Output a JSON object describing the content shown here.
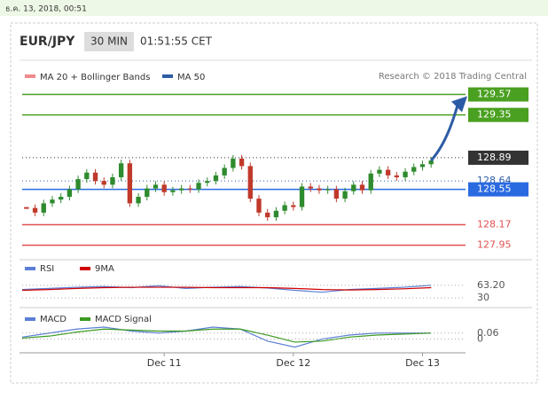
{
  "date": "ธ.ค. 13, 2018, 00:51",
  "header": {
    "symbol": "EUR/JPY",
    "interval": "30 MIN",
    "time": "01:51:55 CET"
  },
  "chart_data": [
    {
      "type": "candlestick",
      "legend": [
        {
          "name": "MA 20 + Bollinger Bands",
          "color": "#f08a8a"
        },
        {
          "name": "MA 50",
          "color": "#2d5ca6"
        }
      ],
      "credit": "Research © 2018 Trading Central",
      "values": [
        128.35,
        128.3,
        128.4,
        128.44,
        128.47,
        128.55,
        128.66,
        128.73,
        128.64,
        128.6,
        128.68,
        128.83,
        128.4,
        128.47,
        128.56,
        128.6,
        128.52,
        128.54,
        128.56,
        128.55,
        128.62,
        128.64,
        128.7,
        128.78,
        128.88,
        128.8,
        128.45,
        128.3,
        128.25,
        128.32,
        128.38,
        128.36,
        128.58,
        128.56,
        128.54,
        128.55,
        128.45,
        128.53,
        128.6,
        128.54,
        128.72,
        128.76,
        128.7,
        128.68,
        128.74,
        128.79,
        128.82,
        128.86
      ],
      "up_color": "#2e8b2e",
      "down_color": "#c0392b",
      "ylim": [
        127.87,
        129.68
      ],
      "xlim": [
        -0.5,
        51
      ],
      "xticks": [
        {
          "value": 16,
          "label": "Dec 11"
        },
        {
          "value": 31,
          "label": "Dec 12"
        },
        {
          "value": 46,
          "label": "Dec 13"
        }
      ],
      "levels": [
        {
          "value": 129.57,
          "color": "#4aa020",
          "style": "solid",
          "box": true
        },
        {
          "value": 129.35,
          "color": "#4aa020",
          "style": "solid",
          "box": true
        },
        {
          "value": 128.89,
          "color": "#333333",
          "style": "dotted",
          "box": true
        },
        {
          "value": 128.64,
          "color": "#2d5ca6",
          "style": "dotted",
          "box": false
        },
        {
          "value": 128.55,
          "color": "#2a6ae0",
          "style": "solid",
          "box": true
        },
        {
          "value": 128.17,
          "color": "#e05050",
          "style": "solid",
          "box": false
        },
        {
          "value": 127.95,
          "color": "#e05050",
          "style": "solid",
          "box": false
        }
      ]
    },
    {
      "type": "line",
      "series": [
        {
          "name": "RSI",
          "color": "#5b7fd6",
          "values": [
            52,
            55,
            58,
            60,
            57,
            62,
            55,
            58,
            60,
            56,
            50,
            45,
            52,
            55,
            58,
            63.2
          ]
        },
        {
          "name": "9MA",
          "color": "#d00000",
          "values": [
            50,
            52,
            55,
            57,
            58,
            58,
            58,
            57,
            57,
            57,
            55,
            52,
            51,
            52,
            54,
            57
          ]
        }
      ],
      "ylim": [
        14,
        114
      ],
      "yticks": [
        {
          "value": 63.2,
          "label": "63.20"
        },
        30
      ]
    },
    {
      "type": "line",
      "series": [
        {
          "name": "MACD",
          "color": "#5b7fd6",
          "values": [
            0.02,
            0.06,
            0.1,
            0.12,
            0.08,
            0.06,
            0.08,
            0.12,
            0.1,
            -0.02,
            -0.08,
            0.0,
            0.04,
            0.06,
            0.06,
            0.06
          ]
        },
        {
          "name": "MACD Signal",
          "color": "#3a9a20",
          "values": [
            0.01,
            0.03,
            0.07,
            0.1,
            0.09,
            0.08,
            0.08,
            0.1,
            0.1,
            0.04,
            -0.03,
            -0.02,
            0.02,
            0.04,
            0.05,
            0.06
          ]
        }
      ],
      "ylim": [
        -0.11,
        0.27
      ],
      "yticks": [
        0.06,
        0
      ]
    }
  ]
}
